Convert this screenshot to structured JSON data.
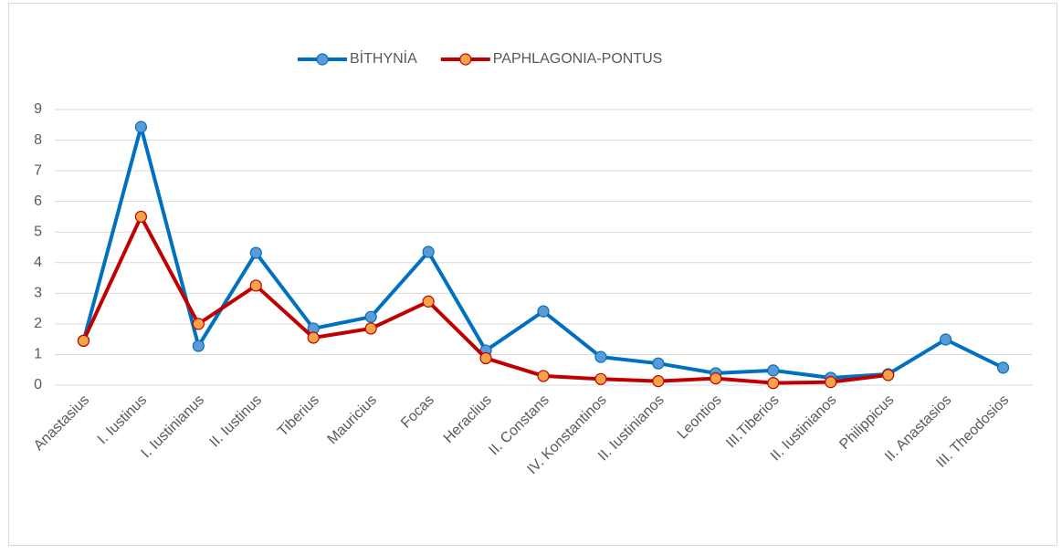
{
  "chart_data": {
    "type": "line",
    "categories": [
      "Anastasius",
      "I. Iustinus",
      "I. Iustinianus",
      "II. Iustinus",
      "Tiberius",
      "Mauricius",
      "Focas",
      "Heraclius",
      "II. Constans",
      "IV. Konstantinos",
      "II. Iustinianos",
      "Leontios",
      "III.Tiberios",
      "II. Iustinianos",
      "Philippicus",
      "II. Anastasios",
      "III. Theodosios"
    ],
    "series": [
      {
        "name": "BİTHYNİA",
        "color": "#0070c0",
        "marker_color": "#5b9bd5",
        "values": [
          1.45,
          8.43,
          1.28,
          4.32,
          1.85,
          2.23,
          4.35,
          1.13,
          2.41,
          0.92,
          0.71,
          0.39,
          0.48,
          0.24,
          0.36,
          1.49,
          0.57
        ]
      },
      {
        "name": "PAPHLAGONIA-PONTUS",
        "color": "#c00000",
        "marker_color": "#f4a347",
        "values": [
          1.45,
          5.5,
          2.0,
          3.25,
          1.55,
          1.85,
          2.73,
          0.88,
          0.3,
          0.2,
          0.13,
          0.22,
          0.07,
          0.1,
          0.33,
          null,
          null
        ]
      }
    ],
    "ylim": [
      0,
      9
    ],
    "yticks": [
      0,
      1,
      2,
      3,
      4,
      5,
      6,
      7,
      8,
      9
    ],
    "grid": true,
    "legend": "top"
  }
}
